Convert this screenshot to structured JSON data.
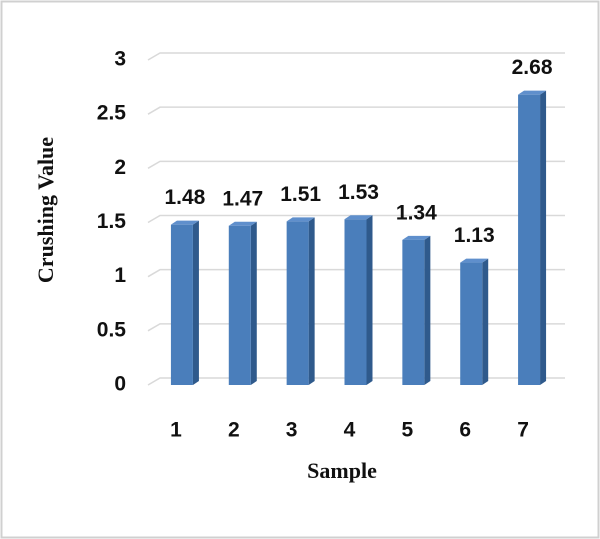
{
  "chart_data": {
    "type": "bar3d",
    "x_label": "Sample",
    "y_label": "Crushing Value",
    "categories": [
      "1",
      "2",
      "3",
      "4",
      "5",
      "6",
      "7"
    ],
    "values": [
      1.48,
      1.47,
      1.51,
      1.53,
      1.34,
      1.13,
      2.68
    ],
    "color": "#4a7ebb",
    "ylim": [
      0,
      3
    ],
    "yticks": [
      0,
      0.5,
      1,
      1.5,
      2,
      2.5,
      3
    ],
    "grid": true
  }
}
